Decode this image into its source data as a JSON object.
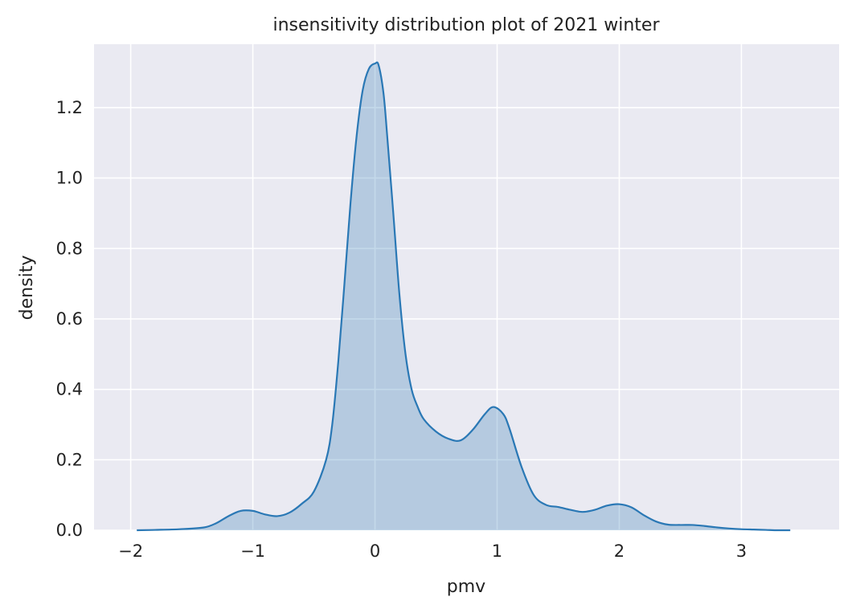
{
  "chart_data": {
    "type": "area",
    "title": "insensitivity distribution plot of 2021 winter",
    "xlabel": "pmv",
    "ylabel": "density",
    "xlim": [
      -2.3,
      3.8
    ],
    "ylim": [
      0,
      1.38
    ],
    "xticks": [
      -2,
      -1,
      0,
      1,
      2,
      3
    ],
    "xtick_labels": [
      "−2",
      "−1",
      "0",
      "1",
      "2",
      "3"
    ],
    "yticks": [
      0,
      0.2,
      0.4,
      0.6,
      0.8,
      1.0,
      1.2
    ],
    "ytick_labels": [
      "0.0",
      "0.2",
      "0.4",
      "0.6",
      "0.8",
      "1.0",
      "1.2"
    ],
    "grid": true,
    "series": [
      {
        "color": "#2a78b5",
        "fill": "#2a78b5",
        "x": [
          -1.95,
          -1.8,
          -1.6,
          -1.4,
          -1.3,
          -1.2,
          -1.1,
          -1.0,
          -0.9,
          -0.8,
          -0.7,
          -0.6,
          -0.5,
          -0.4,
          -0.35,
          -0.3,
          -0.25,
          -0.2,
          -0.15,
          -0.1,
          -0.05,
          0.0,
          0.03,
          0.07,
          0.1,
          0.15,
          0.2,
          0.25,
          0.3,
          0.35,
          0.4,
          0.5,
          0.6,
          0.7,
          0.8,
          0.9,
          0.97,
          1.05,
          1.1,
          1.2,
          1.3,
          1.4,
          1.5,
          1.6,
          1.7,
          1.8,
          1.9,
          2.0,
          2.1,
          2.2,
          2.3,
          2.4,
          2.5,
          2.6,
          2.7,
          2.8,
          2.9,
          3.0,
          3.1,
          3.2,
          3.3,
          3.4
        ],
        "y": [
          0.0,
          0.001,
          0.003,
          0.008,
          0.02,
          0.04,
          0.055,
          0.055,
          0.045,
          0.04,
          0.05,
          0.075,
          0.11,
          0.2,
          0.3,
          0.48,
          0.7,
          0.93,
          1.12,
          1.25,
          1.31,
          1.325,
          1.32,
          1.24,
          1.12,
          0.9,
          0.67,
          0.5,
          0.4,
          0.35,
          0.315,
          0.28,
          0.26,
          0.255,
          0.285,
          0.33,
          0.35,
          0.33,
          0.29,
          0.18,
          0.1,
          0.072,
          0.066,
          0.058,
          0.052,
          0.058,
          0.07,
          0.074,
          0.065,
          0.043,
          0.025,
          0.016,
          0.015,
          0.015,
          0.012,
          0.008,
          0.005,
          0.003,
          0.002,
          0.001,
          0.0,
          0.0
        ]
      }
    ]
  }
}
